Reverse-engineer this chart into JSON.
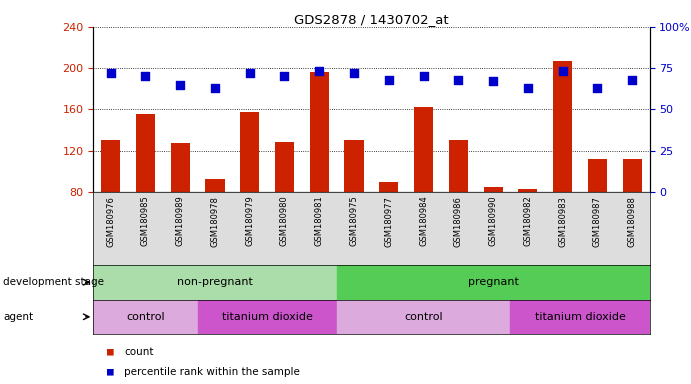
{
  "title": "GDS2878 / 1430702_at",
  "samples": [
    "GSM180976",
    "GSM180985",
    "GSM180989",
    "GSM180978",
    "GSM180979",
    "GSM180980",
    "GSM180981",
    "GSM180975",
    "GSM180977",
    "GSM180984",
    "GSM180986",
    "GSM180990",
    "GSM180982",
    "GSM180983",
    "GSM180987",
    "GSM180988"
  ],
  "counts": [
    130,
    156,
    127,
    93,
    158,
    128,
    196,
    130,
    90,
    162,
    130,
    85,
    83,
    207,
    112,
    112
  ],
  "percentile": [
    72,
    70,
    65,
    63,
    72,
    70,
    73,
    72,
    68,
    70,
    68,
    67,
    63,
    73,
    63,
    68
  ],
  "ylim_left": [
    80,
    240
  ],
  "ylim_right": [
    0,
    100
  ],
  "yticks_left": [
    80,
    120,
    160,
    200,
    240
  ],
  "yticks_right": [
    0,
    25,
    50,
    75,
    100
  ],
  "bar_color": "#cc2200",
  "dot_color": "#0000cc",
  "dot_size": 30,
  "plot_bg": "#ffffff",
  "groups": {
    "development_stage": [
      {
        "label": "non-pregnant",
        "start": 0,
        "end": 7,
        "color": "#aaddaa"
      },
      {
        "label": "pregnant",
        "start": 7,
        "end": 16,
        "color": "#55cc55"
      }
    ],
    "agent": [
      {
        "label": "control",
        "start": 0,
        "end": 3,
        "color": "#ddaadd"
      },
      {
        "label": "titanium dioxide",
        "start": 3,
        "end": 7,
        "color": "#cc55cc"
      },
      {
        "label": "control",
        "start": 7,
        "end": 12,
        "color": "#ddaadd"
      },
      {
        "label": "titanium dioxide",
        "start": 12,
        "end": 16,
        "color": "#cc55cc"
      }
    ]
  },
  "legend": [
    {
      "label": "count",
      "color": "#cc2200"
    },
    {
      "label": "percentile rank within the sample",
      "color": "#0000cc"
    }
  ]
}
